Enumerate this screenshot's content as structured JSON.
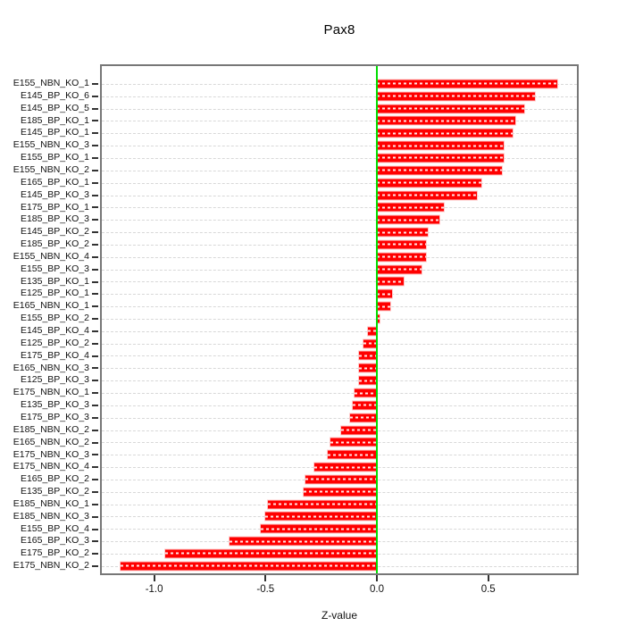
{
  "title": "Pax8",
  "chart_data": {
    "type": "bar",
    "orientation": "horizontal",
    "title": "Pax8",
    "xlabel": "Z-value",
    "ylabel": "",
    "xlim": [
      -1.235,
      0.898
    ],
    "x_ticks": [
      -1.0,
      -0.5,
      0.0,
      0.5
    ],
    "x_tick_labels": [
      "-1.0",
      "-0.5",
      "0.0",
      "0.5"
    ],
    "grid": "horizontal dashed gridline per category",
    "legend": "none",
    "zero_line_at": 0.0,
    "categories": [
      "E155_NBN_KO_1",
      "E145_BP_KO_6",
      "E145_BP_KO_5",
      "E185_BP_KO_1",
      "E145_BP_KO_1",
      "E155_NBN_KO_3",
      "E155_BP_KO_1",
      "E155_NBN_KO_2",
      "E165_BP_KO_1",
      "E145_BP_KO_3",
      "E175_BP_KO_1",
      "E185_BP_KO_3",
      "E145_BP_KO_2",
      "E185_BP_KO_2",
      "E155_NBN_KO_4",
      "E155_BP_KO_3",
      "E135_BP_KO_1",
      "E125_BP_KO_1",
      "E165_NBN_KO_1",
      "E155_BP_KO_2",
      "E145_BP_KO_4",
      "E125_BP_KO_2",
      "E175_BP_KO_4",
      "E165_NBN_KO_3",
      "E125_BP_KO_3",
      "E175_NBN_KO_1",
      "E135_BP_KO_3",
      "E175_BP_KO_3",
      "E185_NBN_KO_2",
      "E165_NBN_KO_2",
      "E175_NBN_KO_3",
      "E175_NBN_KO_4",
      "E165_BP_KO_2",
      "E135_BP_KO_2",
      "E185_NBN_KO_1",
      "E185_NBN_KO_3",
      "E155_BP_KO_4",
      "E165_BP_KO_3",
      "E175_BP_KO_2",
      "E175_NBN_KO_2"
    ],
    "values": [
      0.81,
      0.71,
      0.66,
      0.62,
      0.61,
      0.57,
      0.57,
      0.56,
      0.47,
      0.45,
      0.3,
      0.28,
      0.23,
      0.22,
      0.22,
      0.2,
      0.12,
      0.07,
      0.06,
      0.01,
      -0.04,
      -0.06,
      -0.08,
      -0.08,
      -0.08,
      -0.1,
      -0.11,
      -0.12,
      -0.16,
      -0.21,
      -0.22,
      -0.28,
      -0.32,
      -0.33,
      -0.49,
      -0.5,
      -0.52,
      -0.66,
      -0.95,
      -1.15
    ],
    "colors": {
      "bar": "#ff0000",
      "bar_edge": "#ffc8c8",
      "bar_dash": "#ffffff",
      "zero_line": "#00dd00",
      "gridline": "#d8d8d8",
      "box_border": "#777777",
      "text": "#000000"
    }
  }
}
